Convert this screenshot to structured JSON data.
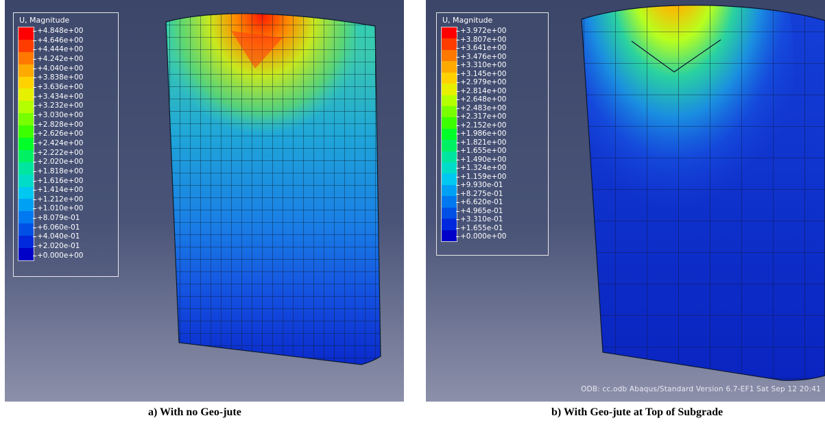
{
  "panels": [
    {
      "legend_title": "U, Magnitude",
      "legend_labels": [
        "+4.848e+00",
        "+4.646e+00",
        "+4.444e+00",
        "+4.242e+00",
        "+4.040e+00",
        "+3.838e+00",
        "+3.636e+00",
        "+3.434e+00",
        "+3.232e+00",
        "+3.030e+00",
        "+2.828e+00",
        "+2.626e+00",
        "+2.424e+00",
        "+2.222e+00",
        "+2.020e+00",
        "+1.818e+00",
        "+1.616e+00",
        "+1.414e+00",
        "+1.212e+00",
        "+1.010e+00",
        "+8.079e-01",
        "+6.060e-01",
        "+4.040e-01",
        "+2.020e-01",
        "+0.000e+00"
      ],
      "caption": "a) With no Geo-jute"
    },
    {
      "legend_title": "U, Magnitude",
      "legend_labels": [
        "+3.972e+00",
        "+3.807e+00",
        "+3.641e+00",
        "+3.476e+00",
        "+3.310e+00",
        "+3.145e+00",
        "+2.979e+00",
        "+2.814e+00",
        "+2.648e+00",
        "+2.483e+00",
        "+2.317e+00",
        "+2.152e+00",
        "+1.986e+00",
        "+1.821e+00",
        "+1.655e+00",
        "+1.490e+00",
        "+1.324e+00",
        "+1.159e+00",
        "+9.930e-01",
        "+8.275e-01",
        "+6.620e-01",
        "+4.965e-01",
        "+3.310e-01",
        "+1.655e-01",
        "+0.000e+00"
      ],
      "odb_text": "ODB: cc.odb    Abaqus/Standard Version 6.7-EF1    Sat Sep 12 20:41",
      "caption": "b) With Geo-jute at Top of Subgrade"
    }
  ],
  "colors": {
    "contour": [
      "#ff0000",
      "#ff3c00",
      "#ff7800",
      "#ffaa00",
      "#ffd200",
      "#e6f000",
      "#b4ff00",
      "#78ff00",
      "#3cff00",
      "#00ff28",
      "#00f064",
      "#00e6a0",
      "#00dcc8",
      "#00c8f0",
      "#00a0f5",
      "#0078f0",
      "#0050e6",
      "#0028dc",
      "#0000c8"
    ],
    "background_top": "#3b4669",
    "background_bottom": "#8c90aa"
  }
}
